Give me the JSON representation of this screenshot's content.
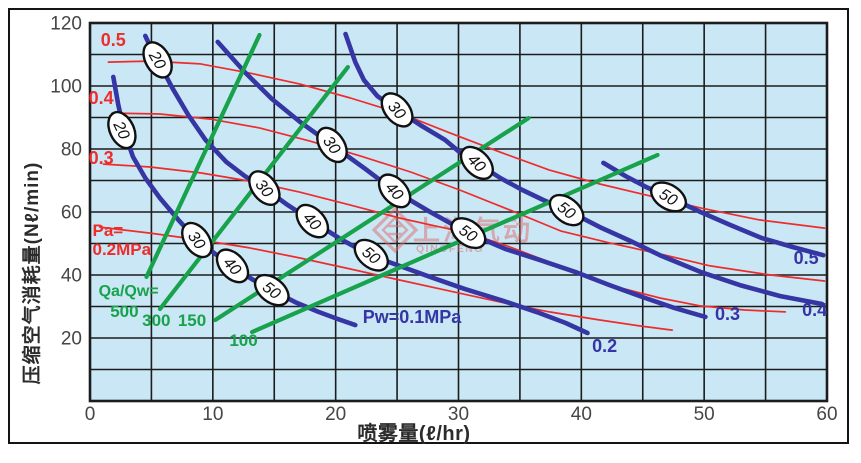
{
  "watermark": {
    "cjk_text": "上海气动",
    "latin_text": "QINOFENG",
    "color": "#e06a6a"
  },
  "chart_data": {
    "type": "line",
    "title": "",
    "xlabel": "喷雾量(ℓ/hr)",
    "ylabel": "压缩空气消耗量(Nℓ/min)",
    "xlim": [
      0,
      60
    ],
    "ylim": [
      0,
      120
    ],
    "x_ticks": [
      0,
      10,
      20,
      30,
      40,
      50,
      60
    ],
    "y_ticks": [
      20,
      40,
      60,
      80,
      100,
      120
    ],
    "x_minor_step": 5,
    "y_minor_step": 10,
    "grid": true,
    "colors": {
      "plot_bg": "#c9e7f5",
      "grid": "#1c1c1c",
      "blue": "#3535a3",
      "red": "#ee2c2c",
      "green": "#17a24b",
      "tick": "#464646"
    },
    "series": [
      {
        "name": "Pa=0.2MPa",
        "family": "air-pressure",
        "value": 0.2,
        "color": "#ee2c2c",
        "width": 1.7,
        "points": [
          [
            0.8,
            55.2
          ],
          [
            4.9,
            53.3
          ],
          [
            9.0,
            51.1
          ],
          [
            13.0,
            48.6
          ],
          [
            17.1,
            45.4
          ],
          [
            21.2,
            41.9
          ],
          [
            25.2,
            38.4
          ],
          [
            29.3,
            34.9
          ],
          [
            33.4,
            31.4
          ],
          [
            37.4,
            28.3
          ],
          [
            41.5,
            25.7
          ],
          [
            44.8,
            23.8
          ],
          [
            47.4,
            22.5
          ]
        ]
      },
      {
        "name": "Pa=0.3MPa",
        "family": "air-pressure",
        "value": 0.3,
        "color": "#ee2c2c",
        "width": 1.7,
        "points": [
          [
            1.1,
            75.2
          ],
          [
            4.9,
            74.3
          ],
          [
            9.0,
            72.4
          ],
          [
            13.0,
            69.8
          ],
          [
            17.1,
            66.3
          ],
          [
            21.2,
            62.2
          ],
          [
            25.2,
            58.1
          ],
          [
            28.1,
            55.6
          ],
          [
            30.8,
            53.3
          ],
          [
            34.2,
            48.9
          ],
          [
            37.4,
            44.1
          ],
          [
            40.7,
            39.4
          ],
          [
            43.2,
            35.9
          ],
          [
            46.4,
            32.7
          ],
          [
            49.7,
            30.2
          ],
          [
            53.3,
            28.9
          ],
          [
            56.6,
            28.3
          ]
        ]
      },
      {
        "name": "Pa=0.4MPa",
        "family": "air-pressure",
        "value": 0.4,
        "color": "#ee2c2c",
        "width": 1.7,
        "points": [
          [
            1.8,
            91.4
          ],
          [
            5.7,
            91.1
          ],
          [
            9.8,
            89.5
          ],
          [
            13.8,
            86.7
          ],
          [
            17.9,
            82.5
          ],
          [
            22.0,
            77.8
          ],
          [
            26.1,
            72.7
          ],
          [
            30.1,
            67.0
          ],
          [
            34.2,
            60.6
          ],
          [
            38.3,
            54.0
          ],
          [
            42.3,
            50.2
          ],
          [
            46.4,
            46.7
          ],
          [
            50.5,
            42.9
          ],
          [
            55.4,
            40.0
          ],
          [
            59.8,
            38.1
          ]
        ]
      },
      {
        "name": "Pa=0.5MPa",
        "family": "air-pressure",
        "value": 0.5,
        "color": "#ee2c2c",
        "width": 1.7,
        "points": [
          [
            1.5,
            107.6
          ],
          [
            4.9,
            107.9
          ],
          [
            9.0,
            107.0
          ],
          [
            13.0,
            104.1
          ],
          [
            17.1,
            100.6
          ],
          [
            21.2,
            96.2
          ],
          [
            25.2,
            91.4
          ],
          [
            29.3,
            85.1
          ],
          [
            33.4,
            79.0
          ],
          [
            37.4,
            73.3
          ],
          [
            41.5,
            68.9
          ],
          [
            45.6,
            65.1
          ],
          [
            49.7,
            61.3
          ],
          [
            54.5,
            57.5
          ],
          [
            59.8,
            54.9
          ]
        ]
      },
      {
        "name": "Pw=0.1MPa",
        "family": "water-pressure",
        "value": 0.1,
        "color": "#3535a3",
        "width": 4.6,
        "points": [
          [
            1.9,
            102.9
          ],
          [
            2.3,
            94.0
          ],
          [
            2.8,
            85.4
          ],
          [
            3.5,
            77.5
          ],
          [
            4.5,
            70.8
          ],
          [
            5.7,
            64.4
          ],
          [
            7.2,
            57.5
          ],
          [
            8.7,
            51.1
          ],
          [
            10.2,
            46.7
          ],
          [
            11.6,
            42.5
          ],
          [
            13.3,
            38.4
          ],
          [
            14.8,
            35.2
          ],
          [
            16.7,
            31.4
          ],
          [
            18.6,
            28.3
          ],
          [
            20.2,
            26.0
          ],
          [
            21.6,
            24.1
          ]
        ]
      },
      {
        "name": "Pw=0.2MPa",
        "family": "water-pressure",
        "value": 0.2,
        "color": "#3535a3",
        "width": 4.6,
        "points": [
          [
            4.5,
            115.9
          ],
          [
            5.0,
            111.7
          ],
          [
            5.5,
            108.3
          ],
          [
            6.7,
            99.4
          ],
          [
            8.0,
            90.8
          ],
          [
            9.4,
            82.9
          ],
          [
            11.1,
            75.9
          ],
          [
            12.6,
            71.4
          ],
          [
            14.2,
            67.6
          ],
          [
            16.1,
            62.2
          ],
          [
            18.1,
            57.1
          ],
          [
            20.4,
            51.4
          ],
          [
            22.8,
            46.3
          ],
          [
            25.2,
            42.9
          ],
          [
            27.7,
            39.4
          ],
          [
            30.5,
            35.6
          ],
          [
            33.4,
            32.1
          ],
          [
            36.6,
            27.9
          ],
          [
            38.7,
            24.8
          ],
          [
            40.5,
            21.6
          ]
        ]
      },
      {
        "name": "Pw=0.3MPa",
        "family": "water-pressure",
        "value": 0.3,
        "color": "#3535a3",
        "width": 4.6,
        "points": [
          [
            10.4,
            114.0
          ],
          [
            12.6,
            104.4
          ],
          [
            14.8,
            95.9
          ],
          [
            17.1,
            88.6
          ],
          [
            19.7,
            81.3
          ],
          [
            22.4,
            73.7
          ],
          [
            24.8,
            66.7
          ],
          [
            27.7,
            60.0
          ],
          [
            30.8,
            53.3
          ],
          [
            33.8,
            48.3
          ],
          [
            36.6,
            44.8
          ],
          [
            39.5,
            41.0
          ],
          [
            42.3,
            36.8
          ],
          [
            45.2,
            32.7
          ],
          [
            47.6,
            29.5
          ],
          [
            50.1,
            26.7
          ]
        ]
      },
      {
        "name": "Pw=0.4MPa",
        "family": "water-pressure",
        "value": 0.4,
        "color": "#3535a3",
        "width": 4.6,
        "points": [
          [
            20.8,
            116.5
          ],
          [
            21.6,
            107.6
          ],
          [
            22.3,
            101.9
          ],
          [
            23.4,
            96.8
          ],
          [
            25.0,
            92.4
          ],
          [
            26.9,
            87.6
          ],
          [
            28.9,
            82.9
          ],
          [
            30.1,
            79.0
          ],
          [
            31.5,
            75.6
          ],
          [
            33.4,
            70.8
          ],
          [
            35.2,
            67.0
          ],
          [
            36.9,
            63.8
          ],
          [
            38.8,
            60.6
          ],
          [
            41.5,
            55.2
          ],
          [
            44.0,
            50.8
          ],
          [
            46.4,
            46.3
          ],
          [
            49.7,
            41.0
          ],
          [
            52.9,
            36.8
          ],
          [
            56.2,
            33.3
          ],
          [
            59.6,
            30.8
          ]
        ]
      },
      {
        "name": "Pw=0.5MPa",
        "family": "water-pressure",
        "value": 0.5,
        "color": "#3535a3",
        "width": 4.6,
        "points": [
          [
            41.8,
            75.6
          ],
          [
            43.6,
            71.4
          ],
          [
            45.3,
            67.9
          ],
          [
            47.1,
            64.8
          ],
          [
            49.7,
            60.0
          ],
          [
            52.1,
            55.9
          ],
          [
            54.7,
            51.7
          ],
          [
            57.2,
            48.9
          ],
          [
            59.7,
            46.3
          ]
        ]
      },
      {
        "name": "Qa/Qw=500",
        "family": "ratio",
        "value": 500,
        "color": "#17a24b",
        "width": 4.2,
        "points": [
          [
            4.6,
            39.4
          ],
          [
            13.8,
            116.2
          ]
        ]
      },
      {
        "name": "Qa/Qw=300",
        "family": "ratio",
        "value": 300,
        "color": "#17a24b",
        "width": 4.2,
        "points": [
          [
            5.7,
            29.2
          ],
          [
            21.0,
            106.0
          ]
        ]
      },
      {
        "name": "Qa/Qw=150",
        "family": "ratio",
        "value": 150,
        "color": "#17a24b",
        "width": 4.2,
        "points": [
          [
            10.2,
            25.7
          ],
          [
            35.7,
            89.8
          ]
        ]
      },
      {
        "name": "Qa/Qw=100",
        "family": "ratio",
        "value": 100,
        "color": "#17a24b",
        "width": 4.2,
        "points": [
          [
            13.2,
            21.9
          ],
          [
            46.2,
            78.1
          ]
        ]
      }
    ],
    "markers": [
      {
        "label": "20",
        "x": 2.6,
        "y": 86.0,
        "angle": 65,
        "on": "Pw=0.1MPa"
      },
      {
        "label": "30",
        "x": 8.7,
        "y": 51.1,
        "angle": 55,
        "on": "Pw=0.1MPa"
      },
      {
        "label": "40",
        "x": 11.6,
        "y": 42.9,
        "angle": 48,
        "on": "Pw=0.1MPa"
      },
      {
        "label": "50",
        "x": 14.8,
        "y": 35.2,
        "angle": 38,
        "on": "Pw=0.1MPa"
      },
      {
        "label": "20",
        "x": 5.5,
        "y": 108.3,
        "angle": 60,
        "on": "Pw=0.2MPa"
      },
      {
        "label": "30",
        "x": 14.2,
        "y": 67.6,
        "angle": 52,
        "on": "Pw=0.2MPa"
      },
      {
        "label": "40",
        "x": 18.1,
        "y": 57.1,
        "angle": 47,
        "on": "Pw=0.2MPa"
      },
      {
        "label": "50",
        "x": 22.9,
        "y": 46.3,
        "angle": 40,
        "on": "Pw=0.2MPa"
      },
      {
        "label": "30",
        "x": 19.7,
        "y": 81.3,
        "angle": 55,
        "on": "Pw=0.3MPa"
      },
      {
        "label": "40",
        "x": 24.8,
        "y": 66.7,
        "angle": 48,
        "on": "Pw=0.3MPa"
      },
      {
        "label": "50",
        "x": 30.8,
        "y": 53.3,
        "angle": 36,
        "on": "Pw=0.3MPa"
      },
      {
        "label": "30",
        "x": 25.0,
        "y": 92.4,
        "angle": 50,
        "on": "Pw=0.4MPa"
      },
      {
        "label": "40",
        "x": 31.5,
        "y": 75.6,
        "angle": 45,
        "on": "Pw=0.4MPa"
      },
      {
        "label": "50",
        "x": 38.8,
        "y": 60.6,
        "angle": 38,
        "on": "Pw=0.4MPa"
      },
      {
        "label": "50",
        "x": 47.1,
        "y": 64.8,
        "angle": 32,
        "on": "Pw=0.5MPa"
      }
    ],
    "annotations": [
      {
        "text": "0.5",
        "x": 1.9,
        "y": 112.7,
        "color": "#ee2c2c",
        "anchor": "middle",
        "size": 18
      },
      {
        "text": "0.4",
        "x": 0.9,
        "y": 94.3,
        "color": "#ee2c2c",
        "anchor": "middle",
        "size": 18
      },
      {
        "text": "0.3",
        "x": 0.9,
        "y": 75.2,
        "color": "#ee2c2c",
        "anchor": "middle",
        "size": 18
      },
      {
        "text": "Pa=",
        "x": 0.2,
        "y": 52.4,
        "color": "#ee2c2c",
        "anchor": "start",
        "size": 17
      },
      {
        "text": "0.2MPa",
        "x": 0.2,
        "y": 46.3,
        "color": "#ee2c2c",
        "anchor": "start",
        "size": 17
      },
      {
        "text": "Qa/Qw=",
        "x": 0.7,
        "y": 33.3,
        "color": "#17a24b",
        "anchor": "start",
        "size": 16
      },
      {
        "text": "500",
        "x": 2.8,
        "y": 26.7,
        "color": "#17a24b",
        "anchor": "middle",
        "size": 17
      },
      {
        "text": "300",
        "x": 5.4,
        "y": 23.8,
        "color": "#17a24b",
        "anchor": "middle",
        "size": 17
      },
      {
        "text": "150",
        "x": 8.3,
        "y": 23.8,
        "color": "#17a24b",
        "anchor": "middle",
        "size": 17
      },
      {
        "text": "100",
        "x": 12.5,
        "y": 17.5,
        "color": "#17a24b",
        "anchor": "middle",
        "size": 17
      },
      {
        "text": "Pw=0.1MPa",
        "x": 22.2,
        "y": 24.8,
        "color": "#3535a3",
        "anchor": "start",
        "size": 18
      },
      {
        "text": "0.2",
        "x": 41.9,
        "y": 15.6,
        "color": "#3535a3",
        "anchor": "middle",
        "size": 18
      },
      {
        "text": "0.3",
        "x": 51.9,
        "y": 25.7,
        "color": "#3535a3",
        "anchor": "middle",
        "size": 18
      },
      {
        "text": "0.4",
        "x": 59.0,
        "y": 27.0,
        "color": "#3535a3",
        "anchor": "middle",
        "size": 18
      },
      {
        "text": "0.5",
        "x": 58.3,
        "y": 43.5,
        "color": "#3535a3",
        "anchor": "middle",
        "size": 18
      }
    ]
  }
}
